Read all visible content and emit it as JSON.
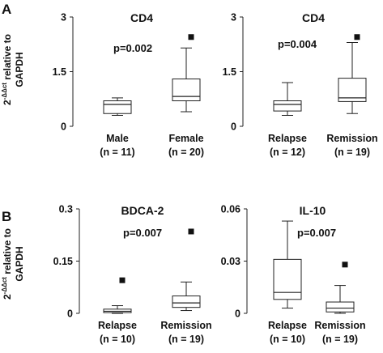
{
  "panels": [
    {
      "letter": "A"
    },
    {
      "letter": "B"
    }
  ],
  "ylabel_parts": {
    "base": "2",
    "superscript": "-ΔΔct",
    "text": " relative to",
    "line2": "GAPDH"
  },
  "chart_data": [
    {
      "type": "box",
      "title": "CD4",
      "annotation": "p=0.002",
      "ylim": [
        0,
        3
      ],
      "yticks": [
        "0",
        "1.5",
        "3"
      ],
      "categories": [
        {
          "label": "Male",
          "n": "(n = 11)",
          "whisker_low": 0.3,
          "q1": 0.35,
          "median": 0.6,
          "q3": 0.7,
          "whisker_high": 0.78,
          "outliers": []
        },
        {
          "label": "Female",
          "n": "(n = 20)",
          "whisker_low": 0.4,
          "q1": 0.7,
          "median": 0.82,
          "q3": 1.3,
          "whisker_high": 2.15,
          "outliers": [
            2.45
          ]
        }
      ]
    },
    {
      "type": "box",
      "title": "CD4",
      "annotation": "p=0.004",
      "ylim": [
        0,
        3
      ],
      "yticks": [
        "0",
        "1.5",
        "3"
      ],
      "categories": [
        {
          "label": "Relapse",
          "n": "(n = 12)",
          "whisker_low": 0.3,
          "q1": 0.42,
          "median": 0.6,
          "q3": 0.7,
          "whisker_high": 1.2,
          "outliers": []
        },
        {
          "label": "Remission",
          "n": "(n = 19)",
          "whisker_low": 0.35,
          "q1": 0.68,
          "median": 0.78,
          "q3": 1.32,
          "whisker_high": 2.3,
          "outliers": [
            2.45
          ]
        }
      ]
    },
    {
      "type": "box",
      "title": "BDCA-2",
      "annotation": "p=0.007",
      "ylim": [
        0,
        0.3
      ],
      "yticks": [
        "0",
        "0.15",
        "0.3"
      ],
      "categories": [
        {
          "label": "Relapse",
          "n": "(n = 10)",
          "whisker_low": 0.0,
          "q1": 0.002,
          "median": 0.006,
          "q3": 0.012,
          "whisker_high": 0.022,
          "outliers": [
            0.095
          ]
        },
        {
          "label": "Remission",
          "n": "(n = 19)",
          "whisker_low": 0.008,
          "q1": 0.017,
          "median": 0.03,
          "q3": 0.05,
          "whisker_high": 0.09,
          "outliers": [
            0.235
          ]
        }
      ]
    },
    {
      "type": "box",
      "title": "IL-10",
      "annotation": "p=0.007",
      "ylim": [
        0,
        0.06
      ],
      "yticks": [
        "0",
        "0.03",
        "0.06"
      ],
      "categories": [
        {
          "label": "Relapse",
          "n": "(n = 10)",
          "whisker_low": 0.003,
          "q1": 0.008,
          "median": 0.012,
          "q3": 0.031,
          "whisker_high": 0.053,
          "outliers": []
        },
        {
          "label": "Remission",
          "n": "(n = 19)",
          "whisker_low": 0.0,
          "q1": 0.0008,
          "median": 0.003,
          "q3": 0.0065,
          "whisker_high": 0.016,
          "outliers": [
            0.028
          ]
        }
      ]
    }
  ]
}
